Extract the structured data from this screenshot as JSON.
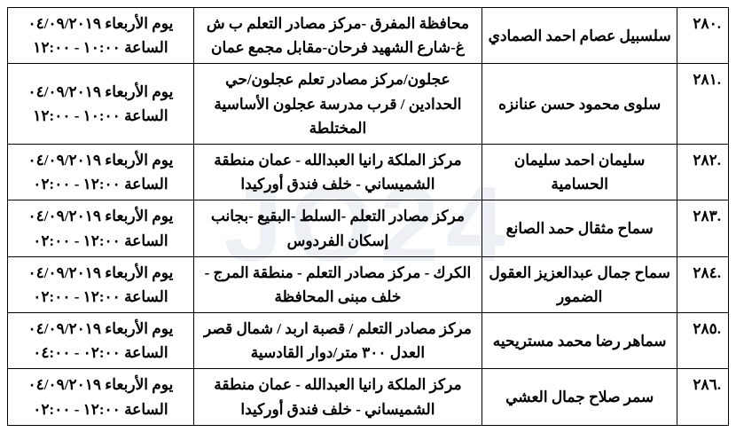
{
  "watermark": "JO24",
  "table": {
    "columns": [
      "num",
      "name",
      "location",
      "datetime"
    ],
    "rows": [
      {
        "num": ".٢٨٠",
        "name": "سلسبيل عصام احمد الصمادي",
        "location": "محافظة المفرق -مركز مصادر التعلم ب ش غ-شارع الشهيد فرحان-مقابل مجمع عمان",
        "date": "يوم الأربعاء ٠٤/٠٩/٢٠١٩",
        "time": "الساعة ١٠:٠٠ - ١٢:٠٠"
      },
      {
        "num": ".٢٨١",
        "name": "سلوى محمود حسن عنانزه",
        "location": "عجلون/مركز مصادر تعلم عجلون/حي الحدادين / قرب مدرسة عجلون الأساسية المختلطة",
        "date": "يوم الأربعاء ٠٤/٠٩/٢٠١٩",
        "time": "الساعة ١٠:٠٠ - ١٢:٠٠"
      },
      {
        "num": ".٢٨٢",
        "name": "سليمان احمد سليمان الحسامية",
        "location": "مركز الملكة رانيا العبدالله - عمان منطقة الشميساني - خلف فندق أوركيدا",
        "date": "يوم الأربعاء ٠٤/٠٩/٢٠١٩",
        "time": "الساعة ١٢:٠٠ - ٠٢:٠٠"
      },
      {
        "num": ".٢٨٣",
        "name": "سماح مثقال حمد الصانع",
        "location": "مركز مصادر التعلم -السلط -البقيع -بجانب إسكان الفردوس",
        "date": "يوم الأربعاء ٠٤/٠٩/٢٠١٩",
        "time": "الساعة ١٢:٠٠ - ٠٢:٠٠"
      },
      {
        "num": ".٢٨٤",
        "name": "سماح جمال عبدالعزيز العقول الضمور",
        "location": "الكرك - مركز مصادر التعلم - منطقة المرج - خلف مبنى المحافظة",
        "date": "يوم الأربعاء ٠٤/٠٩/٢٠١٩",
        "time": "الساعة ١٢:٠٠ - ٠٢:٠٠"
      },
      {
        "num": ".٢٨٥",
        "name": "سماهر رضا محمد مستريحيه",
        "location": "مركز مصادر التعلم / قصبة اربد / شمال قصر العدل ٣٠٠ متر/دوار القادسية",
        "date": "يوم الأربعاء ٠٤/٠٩/٢٠١٩",
        "time": "الساعة ٠٢:٠٠ - ٠٤:٠٠"
      },
      {
        "num": ".٢٨٦",
        "name": "سمر صلاح جمال العشي",
        "location": "مركز الملكة رانيا العبدالله - عمان منطقة الشميساني - خلف فندق أوركيدا",
        "date": "يوم الأربعاء ٠٤/٠٩/٢٠١٩",
        "time": "الساعة ١٢:٠٠ - ٠٢:٠٠"
      }
    ]
  }
}
